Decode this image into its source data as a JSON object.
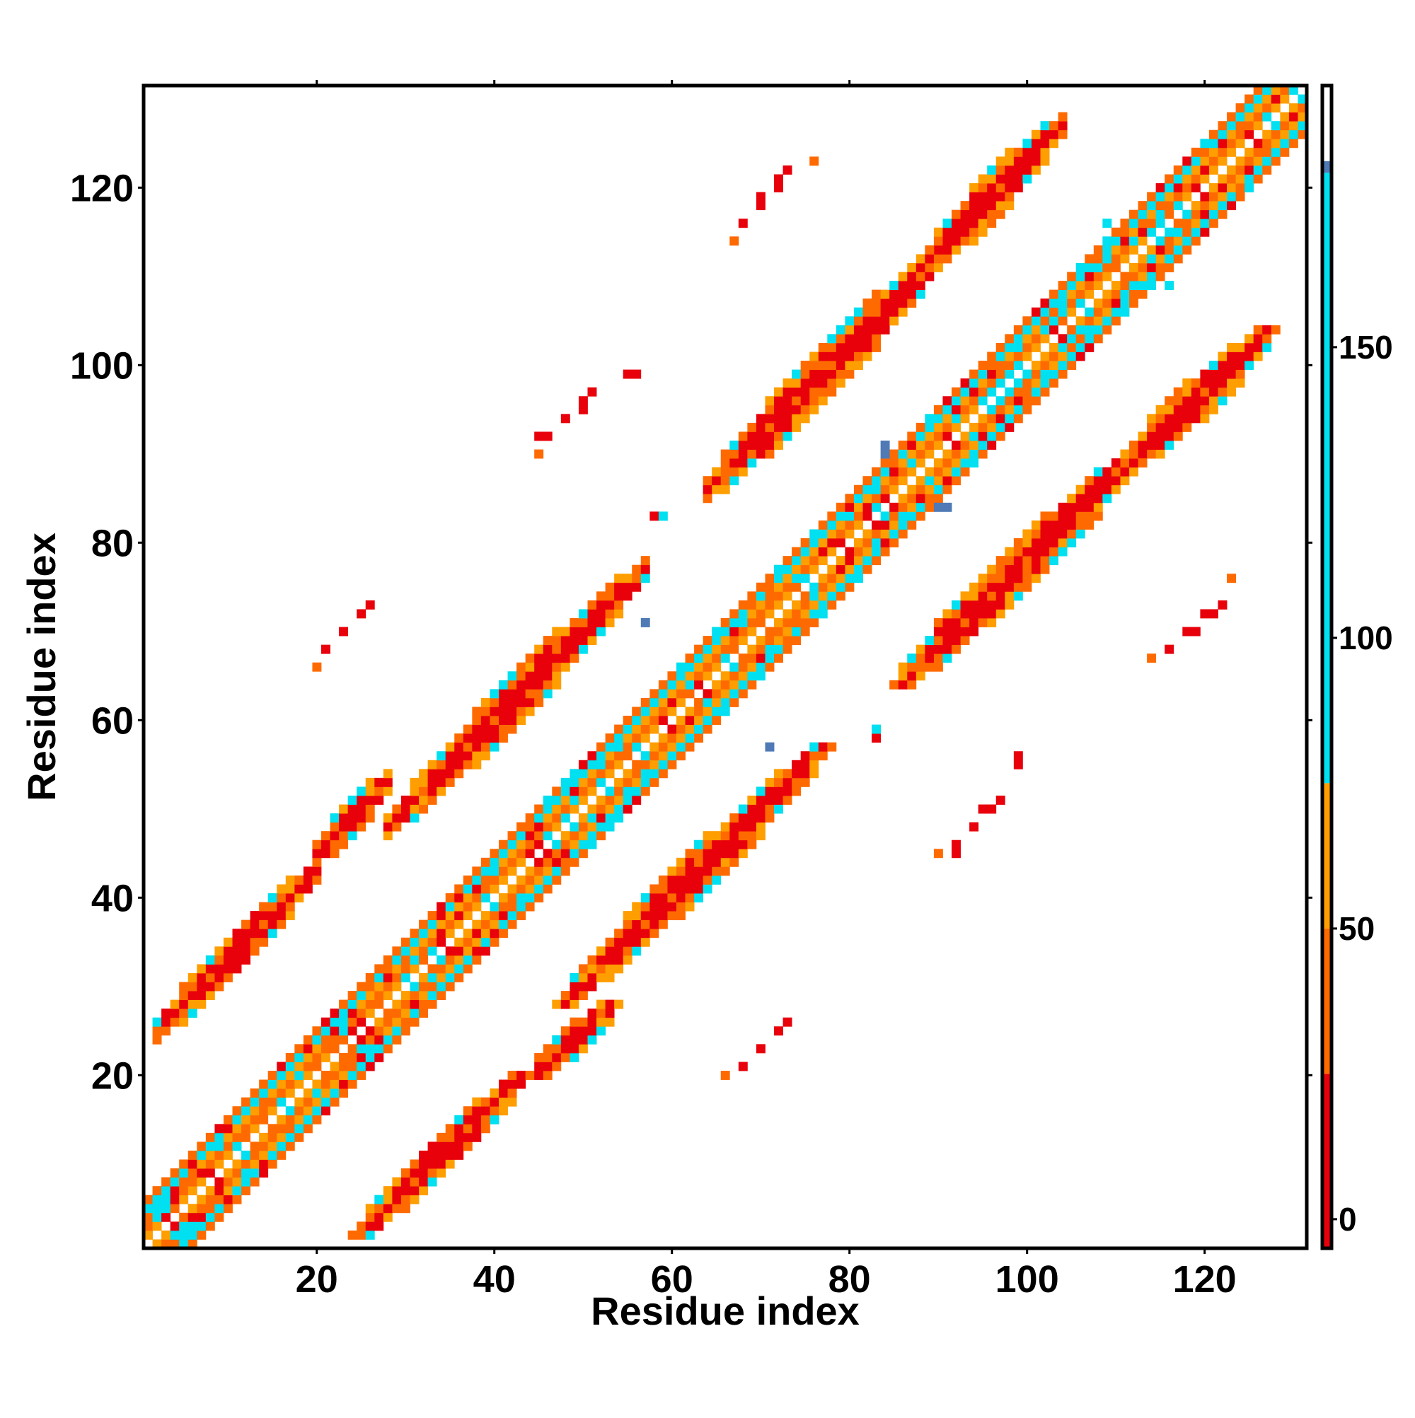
{
  "chart_data": {
    "type": "heatmap",
    "title": "",
    "xlabel": "Residue index",
    "ylabel": "Residue index",
    "xlim": [
      1,
      131
    ],
    "ylim": [
      1,
      131
    ],
    "x_ticks": [
      20,
      40,
      60,
      80,
      100,
      120
    ],
    "y_ticks": [
      20,
      40,
      60,
      80,
      100,
      120
    ],
    "grid": false,
    "symmetric": true,
    "colorbar": {
      "ticks": [
        0,
        50,
        100,
        150
      ],
      "range": [
        -5,
        195
      ],
      "bands": [
        {
          "from": -5,
          "to": 25,
          "color": "#e8000b"
        },
        {
          "from": 25,
          "to": 50,
          "color": "#ff6a00"
        },
        {
          "from": 50,
          "to": 75,
          "color": "#ff9e00"
        },
        {
          "from": 75,
          "to": 180,
          "color": "#00e0f0"
        },
        {
          "from": 180,
          "to": 182,
          "color": "#4f7ab6"
        },
        {
          "from": 182,
          "to": 195,
          "color": "#ffffff"
        }
      ]
    },
    "colors": {
      "red": "#e8000b",
      "orange_red": "#ff6a00",
      "orange": "#ff9e00",
      "cyan": "#00e0f0",
      "steel_blue": "#4f7ab6"
    },
    "patterns": {
      "near_diagonal": {
        "d_min": 1,
        "d_max": 5,
        "values": [
          60,
          45,
          55,
          110,
          35
        ]
      },
      "bands": [
        {
          "x_from": 2,
          "x_to": 20,
          "offset": 23,
          "width": 1.6,
          "core": 5
        },
        {
          "x_from": 20,
          "x_to": 28,
          "offset": 25,
          "width": 1.4,
          "core": 5
        },
        {
          "x_from": 28,
          "x_to": 57,
          "offset": 20,
          "width": 1.8,
          "core": 5
        },
        {
          "x_from": 64,
          "x_to": 90,
          "offset": 22,
          "width": 2.0,
          "core": 5
        },
        {
          "x_from": 88,
          "x_to": 104,
          "offset": 23,
          "width": 1.8,
          "core": 5
        }
      ],
      "isolated": [
        {
          "x": 21,
          "y": 68,
          "v": 5
        },
        {
          "x": 23,
          "y": 70,
          "v": 5
        },
        {
          "x": 25,
          "y": 72,
          "v": 5
        },
        {
          "x": 26,
          "y": 73,
          "v": 5
        },
        {
          "x": 20,
          "y": 66,
          "v": 45
        },
        {
          "x": 45,
          "y": 92,
          "v": 5
        },
        {
          "x": 48,
          "y": 94,
          "v": 5
        },
        {
          "x": 50,
          "y": 96,
          "v": 5
        },
        {
          "x": 51,
          "y": 97,
          "v": 5
        },
        {
          "x": 56,
          "y": 99,
          "v": 5
        },
        {
          "x": 45,
          "y": 90,
          "v": 45
        },
        {
          "x": 67,
          "y": 114,
          "v": 45
        },
        {
          "x": 68,
          "y": 116,
          "v": 5
        },
        {
          "x": 70,
          "y": 119,
          "v": 5
        },
        {
          "x": 72,
          "y": 121,
          "v": 5
        },
        {
          "x": 73,
          "y": 122,
          "v": 5
        },
        {
          "x": 76,
          "y": 123,
          "v": 45
        },
        {
          "x": 83,
          "y": 58,
          "v": 5
        },
        {
          "x": 83,
          "y": 59,
          "v": 100
        },
        {
          "x": 90,
          "y": 45,
          "v": 45
        },
        {
          "x": 92,
          "y": 46,
          "v": 5
        },
        {
          "x": 94,
          "y": 48,
          "v": 5
        },
        {
          "x": 95,
          "y": 50,
          "v": 5
        },
        {
          "x": 97,
          "y": 51,
          "v": 5
        },
        {
          "x": 99,
          "y": 55,
          "v": 5
        },
        {
          "x": 114,
          "y": 67,
          "v": 45
        },
        {
          "x": 116,
          "y": 68,
          "v": 5
        },
        {
          "x": 118,
          "y": 70,
          "v": 5
        },
        {
          "x": 120,
          "y": 72,
          "v": 5
        },
        {
          "x": 122,
          "y": 73,
          "v": 5
        },
        {
          "x": 123,
          "y": 76,
          "v": 45
        },
        {
          "x": 66,
          "y": 20,
          "v": 45
        },
        {
          "x": 68,
          "y": 21,
          "v": 5
        },
        {
          "x": 70,
          "y": 23,
          "v": 5
        },
        {
          "x": 72,
          "y": 25,
          "v": 5
        },
        {
          "x": 73,
          "y": 26,
          "v": 5
        },
        {
          "x": 57,
          "y": 71,
          "v": 181
        },
        {
          "x": 84,
          "y": 90,
          "v": 181
        },
        {
          "x": 91,
          "y": 84,
          "v": 181
        },
        {
          "x": 71,
          "y": 57,
          "v": 181
        },
        {
          "x": 109,
          "y": 116,
          "v": 100
        },
        {
          "x": 116,
          "y": 109,
          "v": 100
        },
        {
          "x": 80,
          "y": 83,
          "v": 100
        },
        {
          "x": 83,
          "y": 80,
          "v": 100
        }
      ]
    }
  }
}
